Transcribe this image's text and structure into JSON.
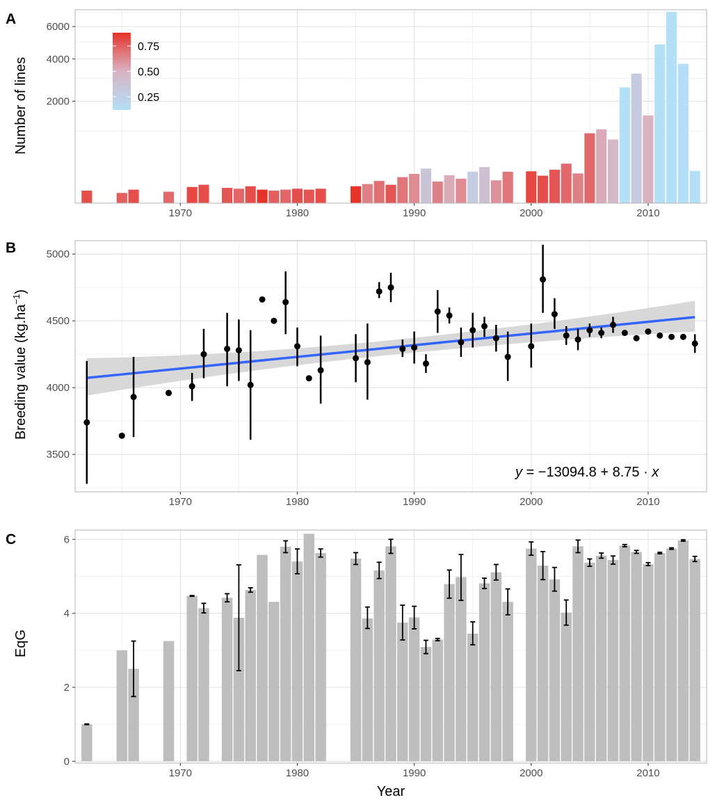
{
  "chart_data": [
    {
      "panel": "A",
      "type": "bar",
      "xlabel": "",
      "ylabel": "Number of lines",
      "y_scale": "sqrt",
      "xlim": [
        1961,
        2015
      ],
      "ylim": [
        0,
        7200
      ],
      "xticks": [
        1970,
        1980,
        1990,
        2000,
        2010
      ],
      "yticks": [
        2000,
        4000,
        6000
      ],
      "grid": true,
      "legend": {
        "placement": "top-left",
        "type": "colorbar",
        "breaks": [
          0.25,
          0.5,
          0.75
        ],
        "range": [
          0.12,
          0.88
        ],
        "low_color": "#b3dff8",
        "mid_color": "#d9b3c2",
        "high_color": "#e8332b"
      },
      "x": [
        1962,
        1965,
        1966,
        1969,
        1971,
        1972,
        1974,
        1975,
        1976,
        1977,
        1978,
        1979,
        1980,
        1981,
        1982,
        1985,
        1986,
        1987,
        1988,
        1989,
        1990,
        1991,
        1992,
        1993,
        1994,
        1995,
        1996,
        1997,
        1998,
        2000,
        2001,
        2002,
        2003,
        2004,
        2005,
        2006,
        2007,
        2008,
        2009,
        2010,
        2011,
        2012,
        2013,
        2014
      ],
      "values": [
        30,
        20,
        35,
        25,
        50,
        65,
        45,
        40,
        55,
        35,
        30,
        35,
        40,
        35,
        40,
        55,
        70,
        95,
        65,
        130,
        165,
        230,
        90,
        150,
        115,
        190,
        250,
        100,
        190,
        195,
        145,
        215,
        300,
        170,
        940,
        1050,
        780,
        2580,
        3230,
        1480,
        4850,
        7050,
        3740,
        200
      ],
      "ratio": [
        0.8,
        0.75,
        0.8,
        0.72,
        0.82,
        0.8,
        0.78,
        0.73,
        0.8,
        0.93,
        0.75,
        0.73,
        0.8,
        0.78,
        0.8,
        0.88,
        0.65,
        0.7,
        0.78,
        0.68,
        0.62,
        0.35,
        0.65,
        0.52,
        0.62,
        0.28,
        0.4,
        0.6,
        0.68,
        0.82,
        0.8,
        0.78,
        0.72,
        0.65,
        0.72,
        0.52,
        0.45,
        0.12,
        0.3,
        0.5,
        0.1,
        0.1,
        0.1,
        0.12
      ]
    },
    {
      "panel": "B",
      "type": "scatter",
      "xlabel": "",
      "ylabel": "Breeding value (kg.ha",
      "ylabel_sup": "−1",
      "ylabel_close": ")",
      "xlim": [
        1961,
        2015
      ],
      "ylim": [
        3220,
        5100
      ],
      "xticks": [
        1970,
        1980,
        1990,
        2000,
        2010
      ],
      "yticks": [
        3500,
        4000,
        4500,
        5000
      ],
      "grid": true,
      "x": [
        1962,
        1965,
        1966,
        1969,
        1971,
        1972,
        1974,
        1975,
        1976,
        1977,
        1978,
        1979,
        1980,
        1981,
        1982,
        1985,
        1986,
        1987,
        1988,
        1989,
        1990,
        1991,
        1992,
        1993,
        1994,
        1995,
        1996,
        1997,
        1998,
        2000,
        2001,
        2002,
        2003,
        2004,
        2005,
        2006,
        2007,
        2008,
        2009,
        2010,
        2011,
        2012,
        2013,
        2014
      ],
      "y": [
        3740,
        3640,
        3930,
        3960,
        4010,
        4250,
        4290,
        4280,
        4020,
        4660,
        4500,
        4640,
        4310,
        4070,
        4130,
        4220,
        4190,
        4720,
        4750,
        4290,
        4300,
        4180,
        4570,
        4540,
        4340,
        4430,
        4460,
        4370,
        4230,
        4310,
        4810,
        4550,
        4390,
        4360,
        4430,
        4410,
        4470,
        4410,
        4370,
        4420,
        4390,
        4380,
        4380,
        4330
      ],
      "err_low": [
        3280,
        3640,
        3630,
        3960,
        3900,
        4070,
        4010,
        4050,
        3610,
        4660,
        4500,
        4400,
        4160,
        4070,
        3880,
        4040,
        3910,
        4670,
        4640,
        4230,
        4180,
        4110,
        4410,
        4480,
        4230,
        4300,
        4380,
        4270,
        4050,
        4150,
        4560,
        4440,
        4320,
        4280,
        4380,
        4370,
        4410,
        4410,
        4370,
        4420,
        4390,
        4380,
        4380,
        4260
      ],
      "err_high": [
        4200,
        3640,
        4230,
        3960,
        4110,
        4440,
        4560,
        4510,
        4430,
        4660,
        4500,
        4870,
        4450,
        4070,
        4390,
        4400,
        4480,
        4790,
        4860,
        4360,
        4420,
        4250,
        4730,
        4600,
        4450,
        4560,
        4530,
        4470,
        4420,
        4480,
        5070,
        4670,
        4460,
        4440,
        4480,
        4450,
        4530,
        4410,
        4370,
        4420,
        4390,
        4380,
        4380,
        4400
      ],
      "regression": {
        "intercept": -13094.8,
        "slope": 8.75,
        "x_range": [
          1962,
          2014
        ],
        "ci_low_ends": [
          3940,
          4420
        ],
        "ci_high_ends": [
          4220,
          4650
        ],
        "line_color": "#3366ff",
        "band_color": "#d4d4d4"
      },
      "equation": {
        "y": "y",
        "eq": " = ",
        "intercept": "−13094.8",
        "plus": " + ",
        "slope": "8.75",
        "dot": " · ",
        "x": "x"
      }
    },
    {
      "panel": "C",
      "type": "bar",
      "xlabel": "Year",
      "ylabel": "EqG",
      "xlim": [
        1961,
        2015
      ],
      "ylim": [
        -0.05,
        6.25
      ],
      "xticks": [
        1970,
        1980,
        1990,
        2000,
        2010
      ],
      "yticks": [
        0,
        2,
        4,
        6
      ],
      "grid": true,
      "bar_color": "#bebebe",
      "x": [
        1962,
        1965,
        1966,
        1969,
        1971,
        1972,
        1974,
        1975,
        1976,
        1977,
        1978,
        1979,
        1980,
        1981,
        1982,
        1985,
        1986,
        1987,
        1988,
        1989,
        1990,
        1991,
        1992,
        1993,
        1994,
        1995,
        1996,
        1997,
        1998,
        2000,
        2001,
        2002,
        2003,
        2004,
        2005,
        2006,
        2007,
        2008,
        2009,
        2010,
        2011,
        2012,
        2013,
        2014
      ],
      "values": [
        1.0,
        3.0,
        2.5,
        3.25,
        4.47,
        4.14,
        4.42,
        3.88,
        4.63,
        5.58,
        4.31,
        5.8,
        5.4,
        6.15,
        5.63,
        5.48,
        3.86,
        5.16,
        5.81,
        3.75,
        3.89,
        3.09,
        3.29,
        4.79,
        4.98,
        3.45,
        4.81,
        5.11,
        4.31,
        5.75,
        5.29,
        4.92,
        4.02,
        5.81,
        5.37,
        5.56,
        5.44,
        5.83,
        5.66,
        5.33,
        5.63,
        5.75,
        5.97,
        5.47
      ],
      "err_low": [
        0.99,
        3.0,
        1.75,
        3.25,
        4.46,
        4.01,
        4.31,
        2.45,
        4.57,
        5.58,
        4.31,
        5.64,
        5.07,
        6.15,
        5.52,
        5.32,
        3.59,
        4.94,
        5.62,
        3.28,
        3.58,
        2.91,
        3.26,
        4.41,
        4.35,
        3.15,
        4.67,
        4.9,
        3.96,
        5.57,
        4.91,
        4.6,
        3.68,
        5.64,
        5.27,
        5.49,
        5.33,
        5.8,
        5.62,
        5.29,
        5.61,
        5.73,
        5.95,
        5.4
      ],
      "err_high": [
        1.01,
        3.0,
        3.25,
        3.25,
        4.48,
        4.27,
        4.53,
        5.31,
        4.69,
        5.58,
        4.31,
        5.96,
        5.74,
        6.15,
        5.74,
        5.64,
        4.17,
        5.38,
        6.0,
        4.22,
        4.19,
        3.27,
        3.32,
        5.17,
        5.59,
        3.77,
        4.95,
        5.32,
        4.66,
        5.93,
        5.67,
        5.24,
        4.36,
        5.98,
        5.47,
        5.63,
        5.55,
        5.86,
        5.7,
        5.37,
        5.65,
        5.77,
        5.99,
        5.54
      ]
    }
  ]
}
